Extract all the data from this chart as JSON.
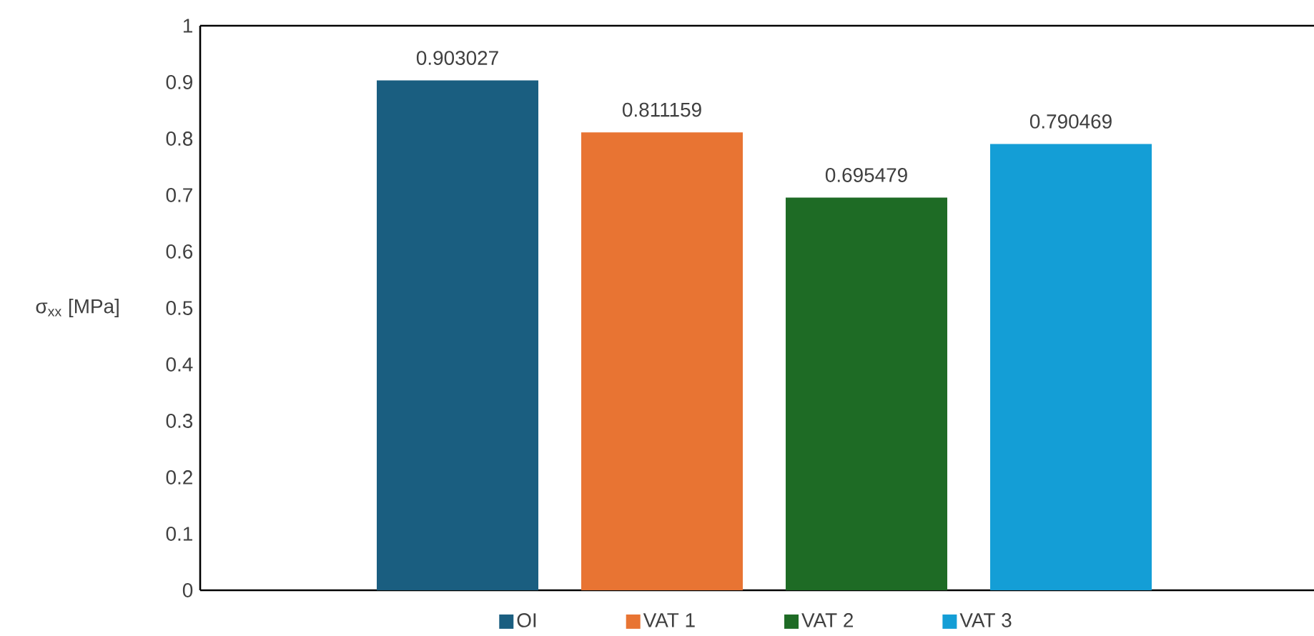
{
  "chart_data": {
    "type": "bar",
    "ylabel": "σ$_{xx}$ [MPa]",
    "categories": [
      null
    ],
    "series": [
      {
        "name": "OI",
        "color": "#1a5e80",
        "values": [
          0.903027
        ]
      },
      {
        "name": "VAT 1",
        "color": "#e87433",
        "values": [
          0.811159
        ]
      },
      {
        "name": "VAT 2",
        "color": "#1e6b25",
        "values": [
          0.695479
        ]
      },
      {
        "name": "VAT 3",
        "color": "#149ed6",
        "values": [
          0.790469
        ]
      }
    ],
    "ylim": [
      0,
      1
    ],
    "yticks": [
      0,
      0.1,
      0.2,
      0.3,
      0.4,
      0.5,
      0.6,
      0.7,
      0.8,
      0.9,
      1
    ],
    "data_labels": true,
    "legend": "bottom"
  }
}
